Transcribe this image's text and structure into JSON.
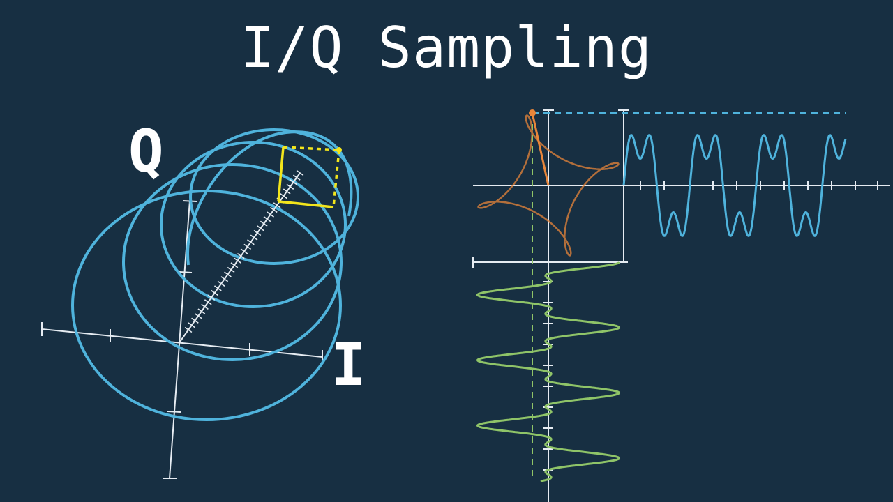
{
  "title": "I/Q Sampling",
  "labels": {
    "q": "Q",
    "i": "I"
  },
  "colors": {
    "background": "#172f42",
    "axis": "#e6ecf2",
    "blue_wave": "#4fb3dc",
    "green_wave": "#8fc468",
    "orange_vector": "#e8863a",
    "yellow_box": "#f2e51c"
  },
  "icons": [
    "rotating-phasor",
    "helix-3d",
    "sine-projection"
  ]
}
